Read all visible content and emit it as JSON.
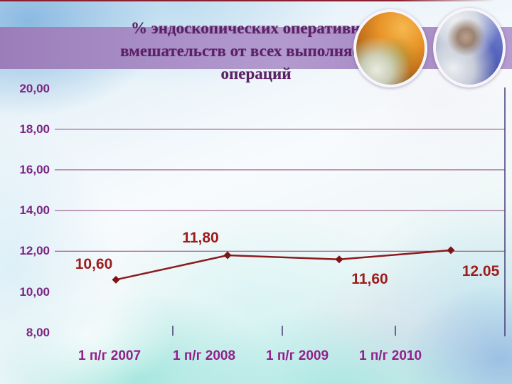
{
  "slide": {
    "title_lines": [
      "% эндоскопических оперативных",
      "вмешательств от всех  выполняемых",
      "операций"
    ]
  },
  "chart_data": {
    "type": "line",
    "title": "% эндоскопических оперативных вмешательств от всех выполняемых операций",
    "categories": [
      "1 п/г 2007",
      "1 п/г 2008",
      "1 п/г 2009",
      "1 п/г 2010"
    ],
    "values": [
      10.6,
      11.8,
      11.6,
      12.05
    ],
    "point_labels": [
      "10,60",
      "11,80",
      "11,60",
      "12.05"
    ],
    "ytick_labels": [
      "20,00",
      "18,00",
      "16,00",
      "14,00",
      "12,00",
      "10,00",
      "8,00"
    ],
    "ytick_values": [
      20,
      18,
      16,
      14,
      12,
      10,
      8
    ],
    "gridline_values": [
      18,
      16,
      14,
      12
    ],
    "ylim": [
      8,
      20
    ],
    "xlabel": "",
    "ylabel": "",
    "legend": "none",
    "grid": "horizontal-partial",
    "marker": "diamond",
    "colors": {
      "line": "#8b1b1e",
      "marker": "#7e1418",
      "point_label": "#9e1b1b",
      "ytick_text": "#7c2483",
      "xtick_text": "#93208a",
      "gridline": "#8f4277",
      "axis_border": "#453878",
      "title_text": "#5c2066",
      "banner": "#a88bc4",
      "top_line": "#8b2030"
    }
  }
}
